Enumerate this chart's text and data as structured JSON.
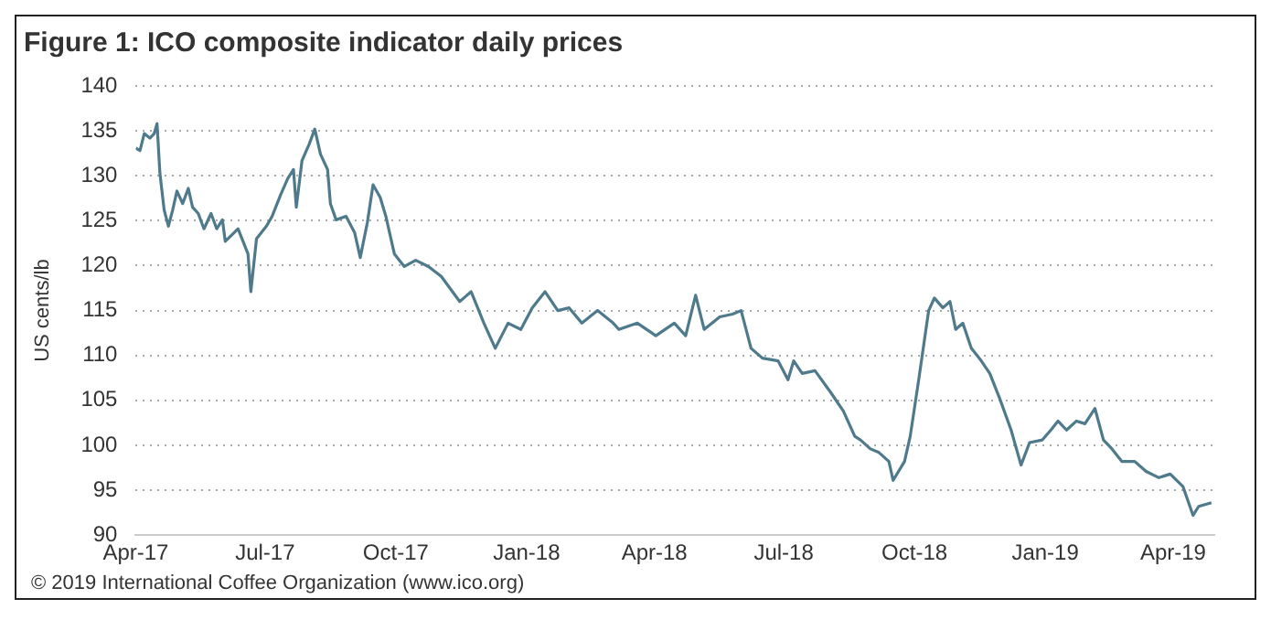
{
  "chart_data": {
    "type": "line",
    "title": "Figure 1: ICO composite indicator daily prices",
    "ylabel": "US cents/lb",
    "annotations": [
      "© 2019 International Coffee Organization (www.ico.org)"
    ],
    "x": [
      "2017-04-01",
      "2017-04-04",
      "2017-04-07",
      "2017-04-11",
      "2017-04-14",
      "2017-04-16",
      "2017-04-18",
      "2017-04-21",
      "2017-04-24",
      "2017-04-27",
      "2017-04-30",
      "2017-05-04",
      "2017-05-08",
      "2017-05-11",
      "2017-05-15",
      "2017-05-19",
      "2017-05-24",
      "2017-05-28",
      "2017-06-01",
      "2017-06-03",
      "2017-06-12",
      "2017-06-19",
      "2017-06-21",
      "2017-06-25",
      "2017-07-02",
      "2017-07-06",
      "2017-07-12",
      "2017-07-17",
      "2017-07-21",
      "2017-07-23",
      "2017-07-27",
      "2017-08-01",
      "2017-08-05",
      "2017-08-09",
      "2017-08-14",
      "2017-08-16",
      "2017-08-20",
      "2017-08-27",
      "2017-09-02",
      "2017-09-06",
      "2017-09-11",
      "2017-09-15",
      "2017-09-20",
      "2017-09-24",
      "2017-09-30",
      "2017-10-07",
      "2017-10-15",
      "2017-10-24",
      "2017-11-02",
      "2017-11-15",
      "2017-11-23",
      "2017-12-02",
      "2017-12-10",
      "2017-12-19",
      "2017-12-28",
      "2018-01-05",
      "2018-01-14",
      "2018-01-23",
      "2018-01-31",
      "2018-02-09",
      "2018-02-20",
      "2018-03-03",
      "2018-03-07",
      "2018-03-20",
      "2018-04-02",
      "2018-04-15",
      "2018-04-23",
      "2018-04-30",
      "2018-05-06",
      "2018-05-17",
      "2018-05-26",
      "2018-06-01",
      "2018-06-08",
      "2018-06-16",
      "2018-06-27",
      "2018-07-04",
      "2018-07-08",
      "2018-07-14",
      "2018-07-23",
      "2018-08-03",
      "2018-08-12",
      "2018-08-20",
      "2018-08-24",
      "2018-08-31",
      "2018-09-06",
      "2018-09-13",
      "2018-09-16",
      "2018-09-24",
      "2018-09-28",
      "2018-10-04",
      "2018-10-11",
      "2018-10-15",
      "2018-10-21",
      "2018-10-26",
      "2018-10-30",
      "2018-11-04",
      "2018-11-10",
      "2018-11-17",
      "2018-11-23",
      "2018-11-30",
      "2018-12-08",
      "2018-12-15",
      "2018-12-21",
      "2018-12-30",
      "2019-01-05",
      "2019-01-10",
      "2019-01-16",
      "2019-01-23",
      "2019-01-29",
      "2019-02-05",
      "2019-02-11",
      "2019-02-17",
      "2019-02-24",
      "2019-03-05",
      "2019-03-13",
      "2019-03-22",
      "2019-03-30",
      "2019-04-08",
      "2019-04-15",
      "2019-04-19",
      "2019-04-28"
    ],
    "series": [
      {
        "color": "#4e7a8c",
        "values": [
          133.1,
          132.8,
          134.7,
          134.2,
          134.7,
          135.8,
          130.3,
          126.2,
          124.4,
          126.2,
          128.3,
          126.9,
          128.6,
          126.5,
          125.8,
          124.1,
          125.8,
          124.1,
          125.1,
          122.7,
          124.1,
          121.3,
          117.1,
          123.0,
          124.4,
          125.5,
          127.9,
          129.7,
          130.7,
          126.5,
          131.7,
          133.5,
          135.2,
          132.4,
          130.7,
          126.9,
          125.1,
          125.5,
          123.7,
          120.9,
          124.8,
          129.0,
          127.6,
          125.5,
          121.3,
          119.9,
          120.6,
          119.9,
          118.8,
          116.0,
          117.1,
          113.6,
          110.8,
          113.6,
          112.9,
          115.3,
          117.1,
          115.0,
          115.3,
          113.6,
          115.0,
          113.6,
          112.9,
          113.6,
          112.2,
          113.6,
          112.2,
          116.7,
          112.9,
          114.3,
          114.6,
          115.0,
          110.8,
          109.7,
          109.4,
          107.3,
          109.4,
          108.0,
          108.3,
          105.9,
          103.8,
          101.0,
          100.6,
          99.6,
          99.2,
          98.2,
          96.1,
          98.2,
          101.0,
          107.3,
          115.0,
          116.4,
          115.3,
          116.0,
          112.9,
          113.6,
          110.8,
          109.4,
          108.0,
          105.2,
          101.7,
          97.8,
          100.3,
          100.6,
          101.7,
          102.7,
          101.7,
          102.7,
          102.4,
          104.1,
          100.6,
          99.6,
          98.2,
          98.2,
          97.1,
          96.4,
          96.8,
          95.4,
          92.2,
          93.2,
          93.6
        ]
      }
    ],
    "xlim": [
      "2017-04-01",
      "2019-04-30"
    ],
    "xticks": [
      {
        "value": "2017-04",
        "label": "Apr-17"
      },
      {
        "value": "2017-07",
        "label": "Jul-17"
      },
      {
        "value": "2017-10",
        "label": "Oct-17"
      },
      {
        "value": "2018-01",
        "label": "Jan-18"
      },
      {
        "value": "2018-04",
        "label": "Apr-18"
      },
      {
        "value": "2018-07",
        "label": "Jul-18"
      },
      {
        "value": "2018-10",
        "label": "Oct-18"
      },
      {
        "value": "2019-01",
        "label": "Jan-19"
      },
      {
        "value": "2019-04",
        "label": "Apr-19"
      }
    ],
    "ylim": [
      90,
      140
    ],
    "yticks": [
      90,
      95,
      100,
      105,
      110,
      115,
      120,
      125,
      130,
      135,
      140
    ],
    "grid": "y",
    "legend": false,
    "marker": "none",
    "line_style": "solid"
  }
}
